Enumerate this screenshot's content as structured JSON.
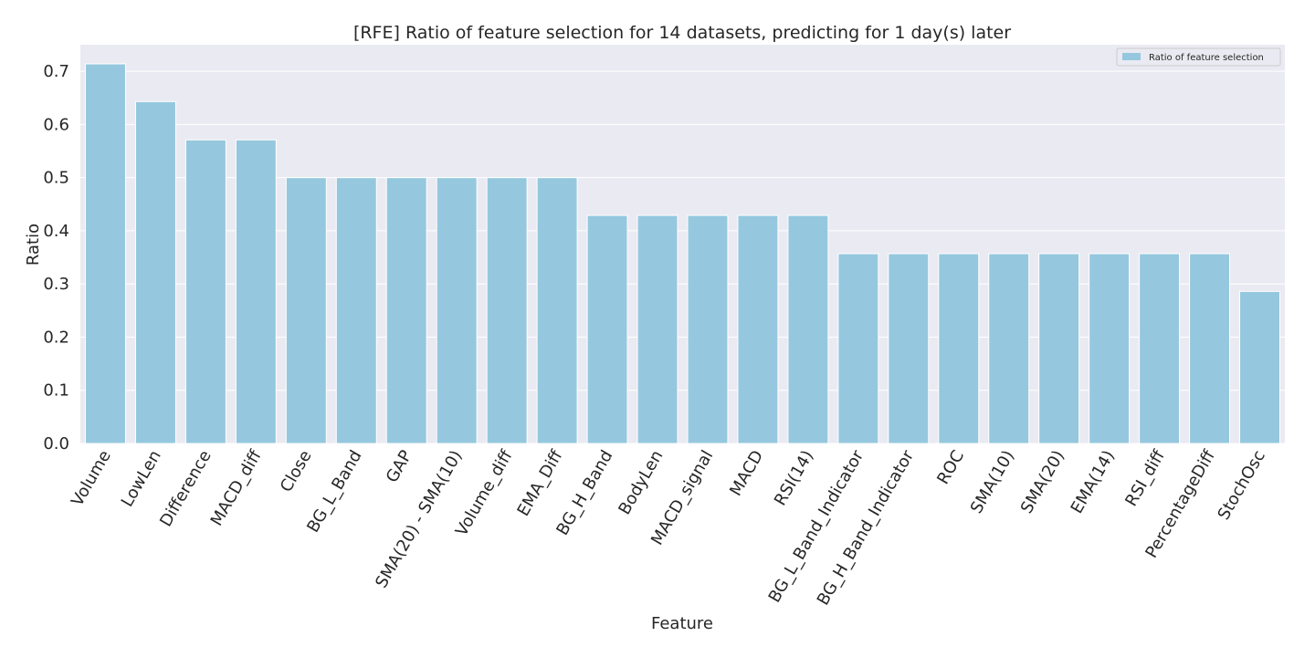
{
  "chart_data": {
    "type": "bar",
    "title": "[RFE] Ratio of feature selection for 14 datasets, predicting for 1 day(s) later",
    "xlabel": "Feature",
    "ylabel": "Ratio",
    "ylim": [
      0,
      0.75
    ],
    "yticks": [
      "0.0",
      "0.1",
      "0.2",
      "0.3",
      "0.4",
      "0.5",
      "0.6",
      "0.7"
    ],
    "grid": true,
    "legend_position": "top-right",
    "bar_color": "#95c8de",
    "background_color": "#eaeaf2",
    "categories": [
      "Volume",
      "LowLen",
      "Difference",
      "MACD_diff",
      "Close",
      "BG_L_Band",
      "GAP",
      "SMA(20) - SMA(10)",
      "Volume_diff",
      "EMA_Diff",
      "BG_H_Band",
      "BodyLen",
      "MACD_signal",
      "MACD",
      "RSI(14)",
      "BG_L_Band_Indicator",
      "BG_H_Band_Indicator",
      "ROC",
      "SMA(10)",
      "SMA(20)",
      "EMA(14)",
      "RSI_diff",
      "PercentageDiff",
      "StochOsc"
    ],
    "series": [
      {
        "name": "Ratio of feature selection",
        "values": [
          0.714,
          0.643,
          0.571,
          0.571,
          0.5,
          0.5,
          0.5,
          0.5,
          0.5,
          0.5,
          0.429,
          0.429,
          0.429,
          0.429,
          0.429,
          0.357,
          0.357,
          0.357,
          0.357,
          0.357,
          0.357,
          0.357,
          0.357,
          0.286
        ]
      }
    ]
  }
}
